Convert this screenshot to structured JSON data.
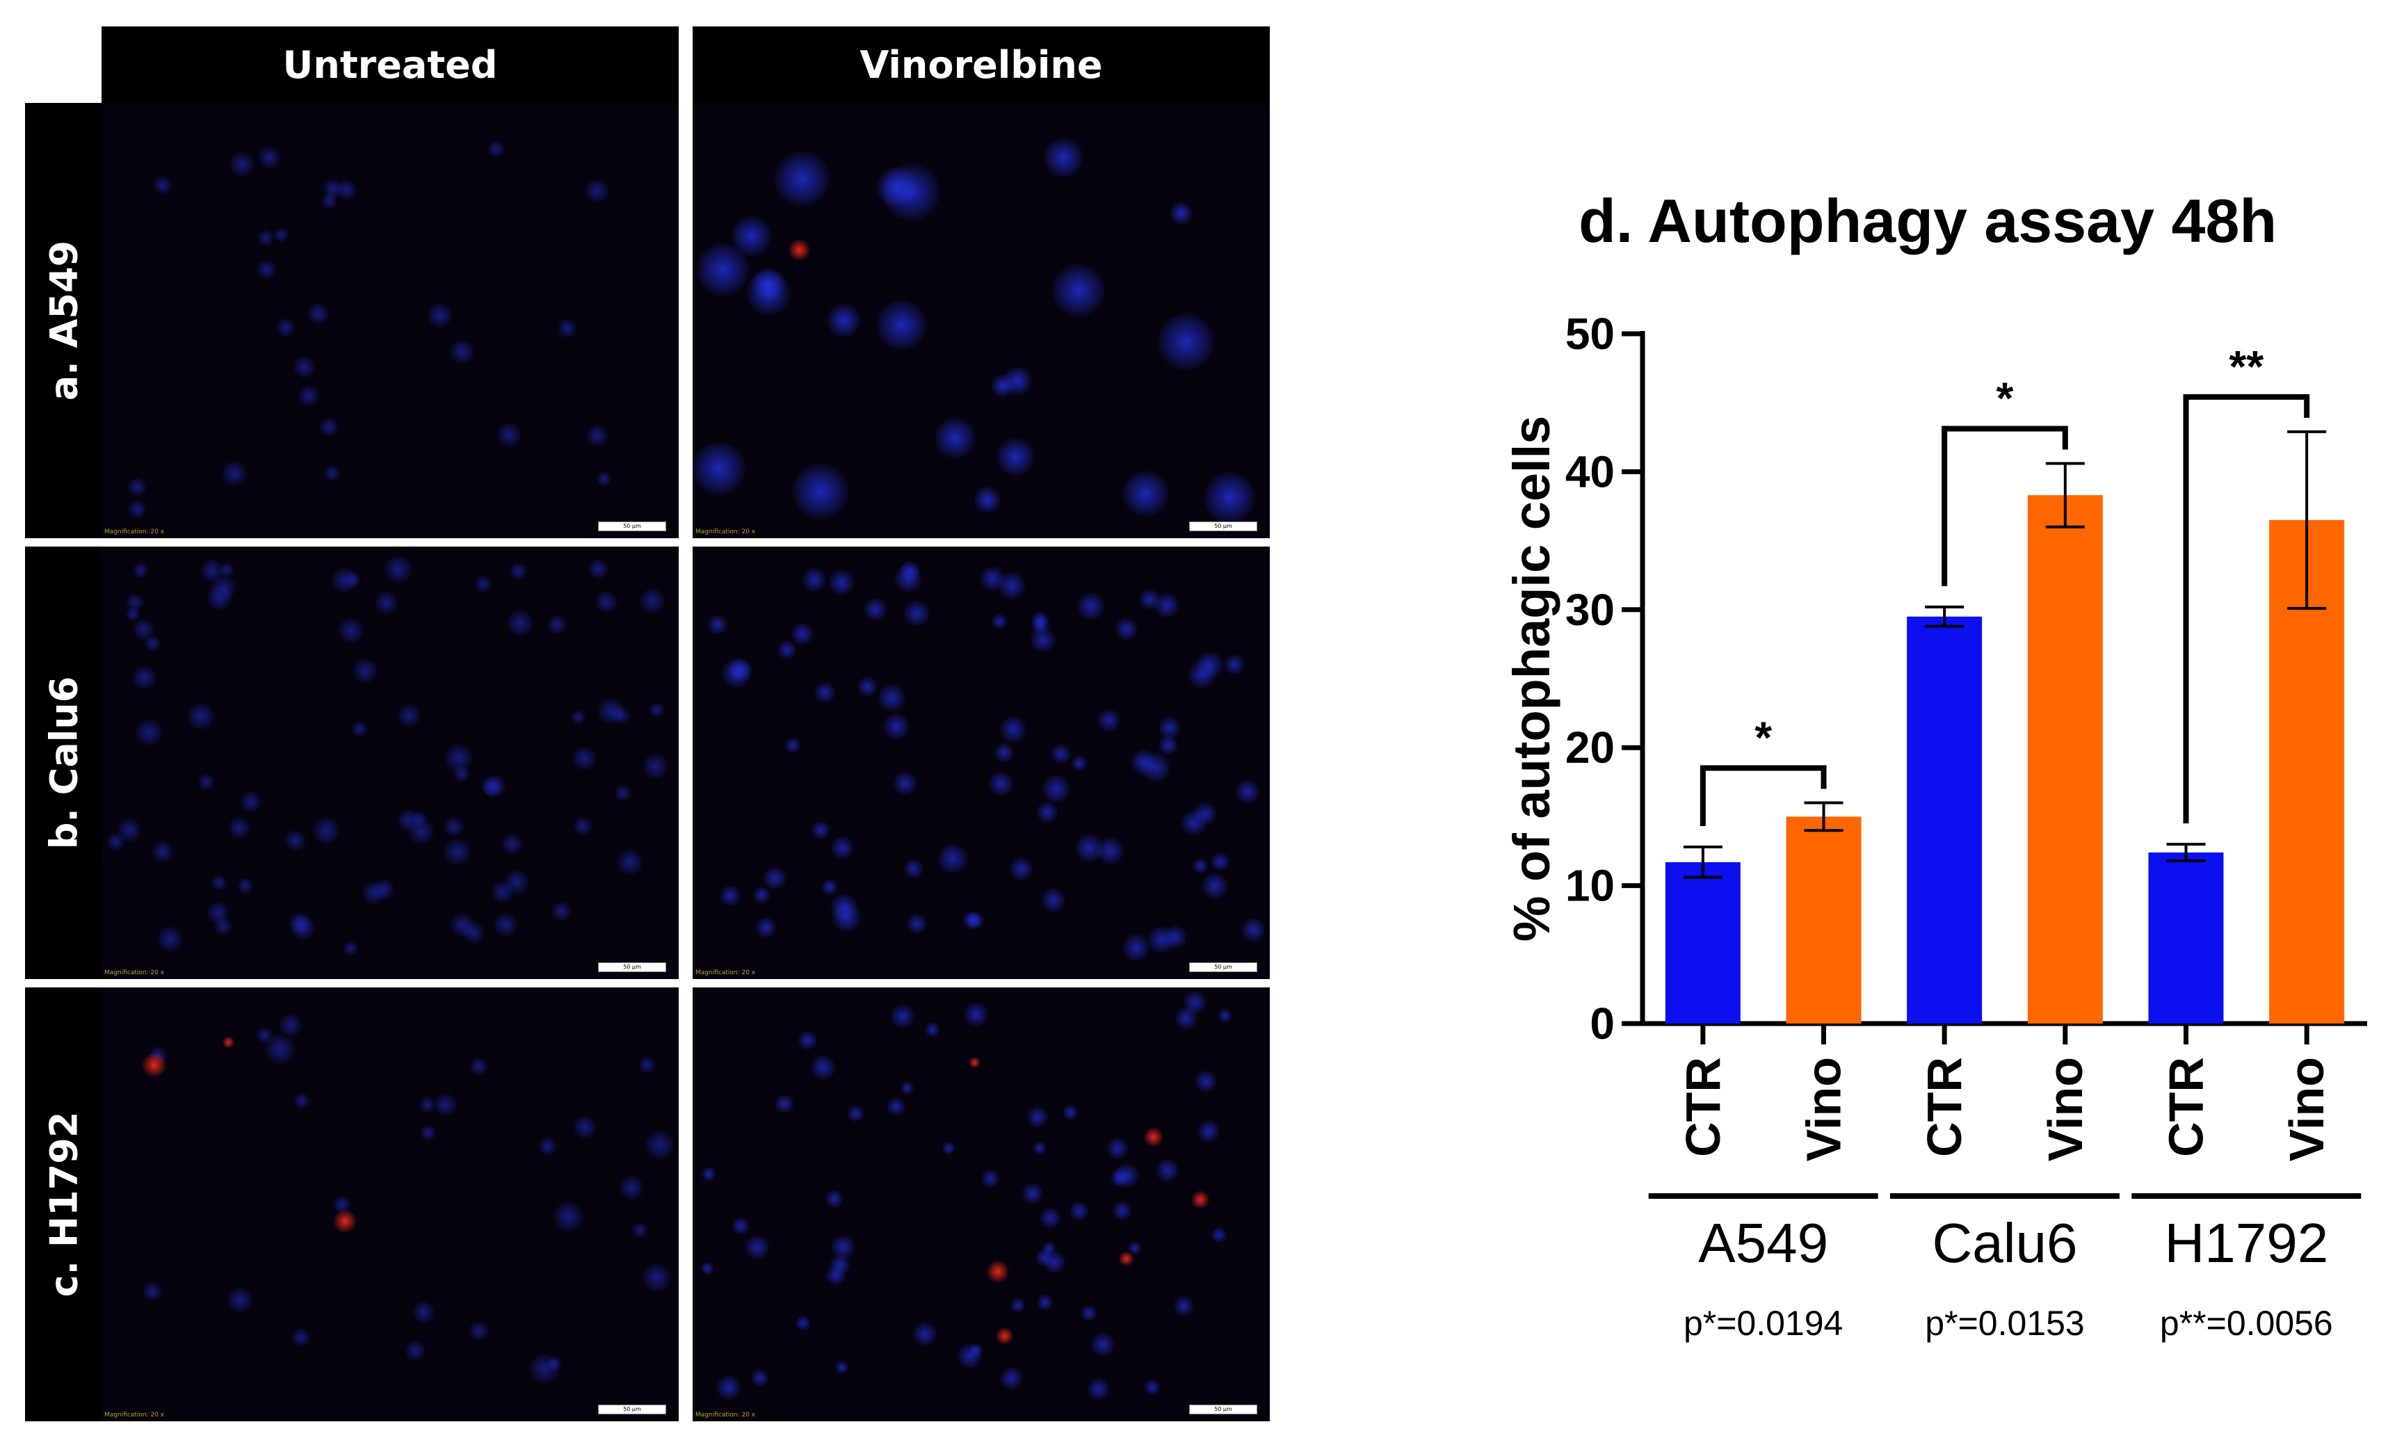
{
  "columns": [
    "Untreated",
    "Vinorelbine"
  ],
  "rows": [
    "a. A549",
    "b. Calu6",
    "c. H1792"
  ],
  "micro": {
    "magnification": "Magnification: 20 x",
    "scale_bar": "50 µm",
    "colors": {
      "nucleus": "#2838ff",
      "autophagy": "#ff2a1a",
      "background": "#06030f"
    }
  },
  "chart_data": {
    "type": "bar",
    "title": "d.   Autophagy assay 48h",
    "ylabel": "% of autophagic cells",
    "ylim": [
      0,
      50
    ],
    "yticks": [
      0,
      10,
      20,
      30,
      40,
      50
    ],
    "groups": [
      "A549",
      "Calu6",
      "H1792"
    ],
    "categories": [
      "CTR",
      "Vino",
      "CTR",
      "Vino",
      "CTR",
      "Vino"
    ],
    "values": [
      11.7,
      15.0,
      29.5,
      38.3,
      12.4,
      36.5
    ],
    "errors": [
      1.1,
      1.0,
      0.7,
      2.3,
      0.6,
      6.4
    ],
    "colors": [
      "#0a10ee",
      "#ff6600",
      "#0a10ee",
      "#ff6600",
      "#0a10ee",
      "#ff6600"
    ],
    "significance": [
      "*",
      "*",
      "**"
    ],
    "pvalues": [
      "p*=0.0194",
      "p*=0.0153",
      "p**=0.0056"
    ]
  }
}
